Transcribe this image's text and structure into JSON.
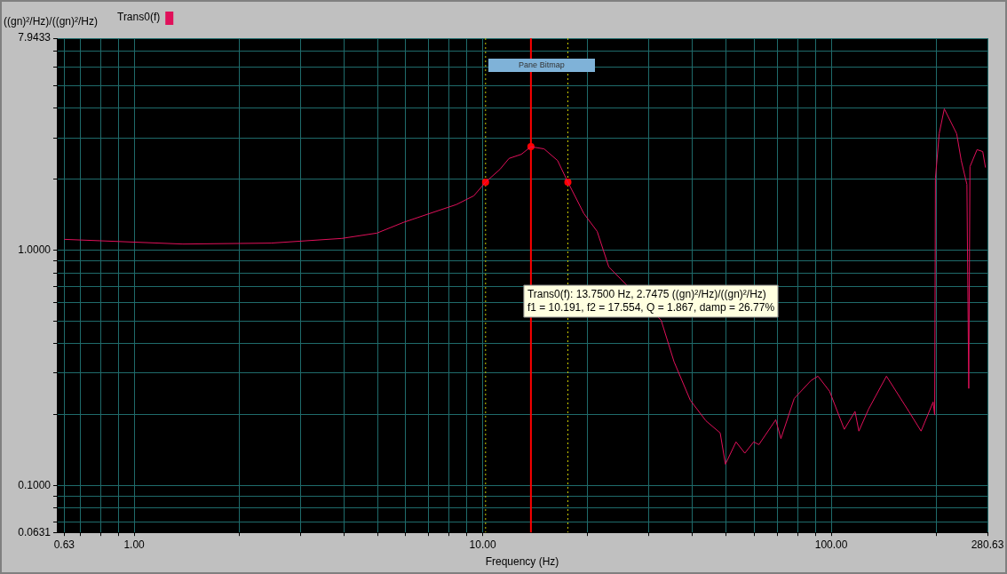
{
  "chart_data": {
    "type": "line",
    "xlabel": "Frequency (Hz)",
    "ylabel": "((gn)²/Hz)/((gn)²/Hz)",
    "log": "xy",
    "grid": true,
    "legend": "top left",
    "line_style": "solid",
    "xlim": [
      0.63,
      280.63
    ],
    "ylim": [
      0.0631,
      7.9433
    ],
    "xticks": [
      0.63,
      {
        "value": 0.7,
        "label": null
      },
      {
        "value": 0.8,
        "label": null
      },
      {
        "value": 0.9,
        "label": null
      },
      {
        "value": 1,
        "label": "1.00"
      },
      {
        "value": 2,
        "label": null
      },
      {
        "value": 3,
        "label": null
      },
      {
        "value": 4,
        "label": null
      },
      {
        "value": 5,
        "label": null
      },
      {
        "value": 6,
        "label": null
      },
      {
        "value": 7,
        "label": null
      },
      {
        "value": 8,
        "label": null
      },
      {
        "value": 9,
        "label": null
      },
      {
        "value": 10,
        "label": "10.00"
      },
      {
        "value": 20,
        "label": null
      },
      {
        "value": 30,
        "label": null
      },
      {
        "value": 40,
        "label": null
      },
      {
        "value": 50,
        "label": null
      },
      {
        "value": 60,
        "label": null
      },
      {
        "value": 70,
        "label": null
      },
      {
        "value": 80,
        "label": null
      },
      {
        "value": 90,
        "label": null
      },
      {
        "value": 100,
        "label": "100.00"
      },
      {
        "value": 200,
        "label": null
      },
      280.63
    ],
    "yticks": [
      0.0631,
      {
        "value": 0.07,
        "label": null
      },
      {
        "value": 0.08,
        "label": null
      },
      {
        "value": 0.09,
        "label": null
      },
      {
        "value": 0.1,
        "label": "0.1000"
      },
      {
        "value": 0.2,
        "label": null
      },
      {
        "value": 0.3,
        "label": null
      },
      {
        "value": 0.4,
        "label": null
      },
      {
        "value": 0.5,
        "label": null
      },
      {
        "value": 0.6,
        "label": null
      },
      {
        "value": 0.7,
        "label": null
      },
      {
        "value": 0.8,
        "label": null
      },
      {
        "value": 0.9,
        "label": null
      },
      {
        "value": 1,
        "label": "1.0000"
      },
      {
        "value": 2,
        "label": null
      },
      {
        "value": 3,
        "label": null
      },
      {
        "value": 4,
        "label": null
      },
      {
        "value": 5,
        "label": null
      },
      {
        "value": 6,
        "label": null
      },
      {
        "value": 7,
        "label": null
      },
      7.9433
    ],
    "series": [
      {
        "name": "Trans0(f)",
        "color": "#e0105a",
        "marker": "none",
        "x": [
          0.63,
          1.38,
          2.47,
          3.94,
          4.97,
          5.92,
          7.05,
          8.4,
          9.43,
          10.191,
          11.2,
          11.9,
          12.9,
          13.75,
          15.0,
          16.4,
          17.554,
          19.5,
          21.3,
          23.0,
          32.5,
          35.4,
          39.4,
          43.7,
          48.0,
          49.7,
          53.3,
          56.5,
          59.9,
          62.0,
          69.3,
          71.7,
          78.3,
          87.5,
          91.6,
          98.9,
          109,
          117,
          120,
          128,
          144,
          167,
          181,
          196,
          198,
          199,
          204,
          211,
          229,
          236,
          245,
          248,
          250,
          262,
          272,
          277
        ],
        "values": [
          1.11,
          1.06,
          1.07,
          1.12,
          1.18,
          1.31,
          1.43,
          1.56,
          1.7,
          1.943,
          2.2,
          2.45,
          2.55,
          2.7475,
          2.69,
          2.4,
          1.943,
          1.43,
          1.2,
          0.848,
          0.503,
          0.335,
          0.23,
          0.188,
          0.167,
          0.123,
          0.153,
          0.137,
          0.153,
          0.149,
          0.19,
          0.158,
          0.234,
          0.279,
          0.291,
          0.251,
          0.173,
          0.206,
          0.17,
          0.211,
          0.291,
          0.206,
          0.17,
          0.226,
          0.199,
          2.02,
          3.12,
          3.98,
          3.12,
          2.4,
          1.9,
          0.258,
          2.26,
          2.67,
          2.62,
          2.24
        ]
      },
      {
        "type": "scatter",
        "color": "#ff0000",
        "marker": "circle",
        "x": [
          10.191,
          13.75,
          17.554
        ],
        "values": [
          1.943,
          2.7475,
          1.943
        ]
      }
    ],
    "ref_lines": [
      {
        "axis": "x",
        "value": 13.75,
        "color": "#ff0000",
        "line_style": "solid"
      },
      {
        "axis": "x",
        "value": 10.191,
        "color": "#c8c800",
        "line_style": "dotted"
      },
      {
        "axis": "x",
        "value": 17.554,
        "color": "#c8c800",
        "line_style": "dotted"
      }
    ],
    "annotations": [
      "Pane Bitmap",
      "Trans0(f): 13.7500 Hz, 2.7475 ((gn)²/Hz)/((gn)²/Hz)",
      "f1 = 10.191, f2 = 17.554, Q = 1.867, damp = 26.77%"
    ]
  }
}
